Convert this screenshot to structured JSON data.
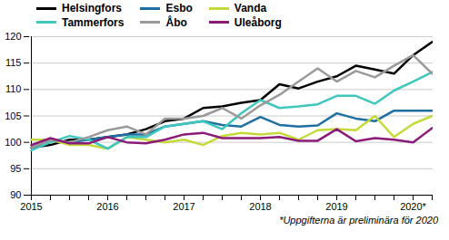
{
  "chart_data": {
    "type": "line",
    "legend": "top",
    "grid": true,
    "caption": "*Uppgifterna är preliminära för 2020",
    "categories": [
      "2015",
      null,
      null,
      null,
      "2016",
      null,
      null,
      null,
      "2017",
      null,
      null,
      null,
      "2018",
      null,
      null,
      null,
      "2019",
      null,
      null,
      null,
      "2020*",
      null
    ],
    "ylim": [
      90,
      120
    ],
    "yticks": [
      90,
      95,
      100,
      105,
      110,
      115,
      120
    ],
    "series": [
      {
        "name": "Helsingfors",
        "color": "#000000",
        "values": [
          99,
          99.5,
          100.5,
          100.5,
          101,
          101.5,
          102.5,
          104,
          104.5,
          106.5,
          106.8,
          107.5,
          108,
          111,
          110.2,
          111.5,
          112.5,
          114.5,
          113.8,
          113,
          116.5,
          119
        ]
      },
      {
        "name": "Esbo",
        "color": "#1f6fa3",
        "values": [
          99,
          100.5,
          100,
          100.5,
          101,
          101.5,
          101.5,
          103,
          103.5,
          104,
          103.3,
          103,
          104.8,
          103.3,
          103,
          103.2,
          105.5,
          104.5,
          104,
          106,
          106,
          106
        ]
      },
      {
        "name": "Vanda",
        "color": "#c5d93a",
        "values": [
          100.5,
          100.5,
          99.5,
          99.5,
          98.8,
          101,
          100.5,
          100,
          100.5,
          99.5,
          101.2,
          101.8,
          101.5,
          101.8,
          100.5,
          102.3,
          102.5,
          102.3,
          105,
          101,
          103.5,
          105
        ]
      },
      {
        "name": "Tammerfors",
        "color": "#3fc7bd",
        "values": [
          98.5,
          100,
          101.2,
          100.5,
          98.8,
          101,
          101,
          103,
          103.5,
          104,
          102.5,
          105.5,
          108,
          106.5,
          106.8,
          107.2,
          108.8,
          108.8,
          107.3,
          109.8,
          111.5,
          113.3
        ]
      },
      {
        "name": "Åbo",
        "color": "#9a9a9a",
        "values": [
          99,
          100.5,
          100,
          101,
          102.3,
          103,
          101.5,
          104.5,
          104.5,
          105,
          106.5,
          104.5,
          107,
          109,
          111.5,
          114,
          111.5,
          113.5,
          112.3,
          114.5,
          116.5,
          113
        ]
      },
      {
        "name": "Uleåborg",
        "color": "#8b1a78",
        "values": [
          99.5,
          100.8,
          99.8,
          99.8,
          101,
          100,
          99.8,
          100.5,
          101.5,
          101.8,
          100.8,
          100.8,
          100.8,
          101,
          100.3,
          100.3,
          102.5,
          100.2,
          100.8,
          100.5,
          100,
          102.7
        ]
      }
    ]
  }
}
